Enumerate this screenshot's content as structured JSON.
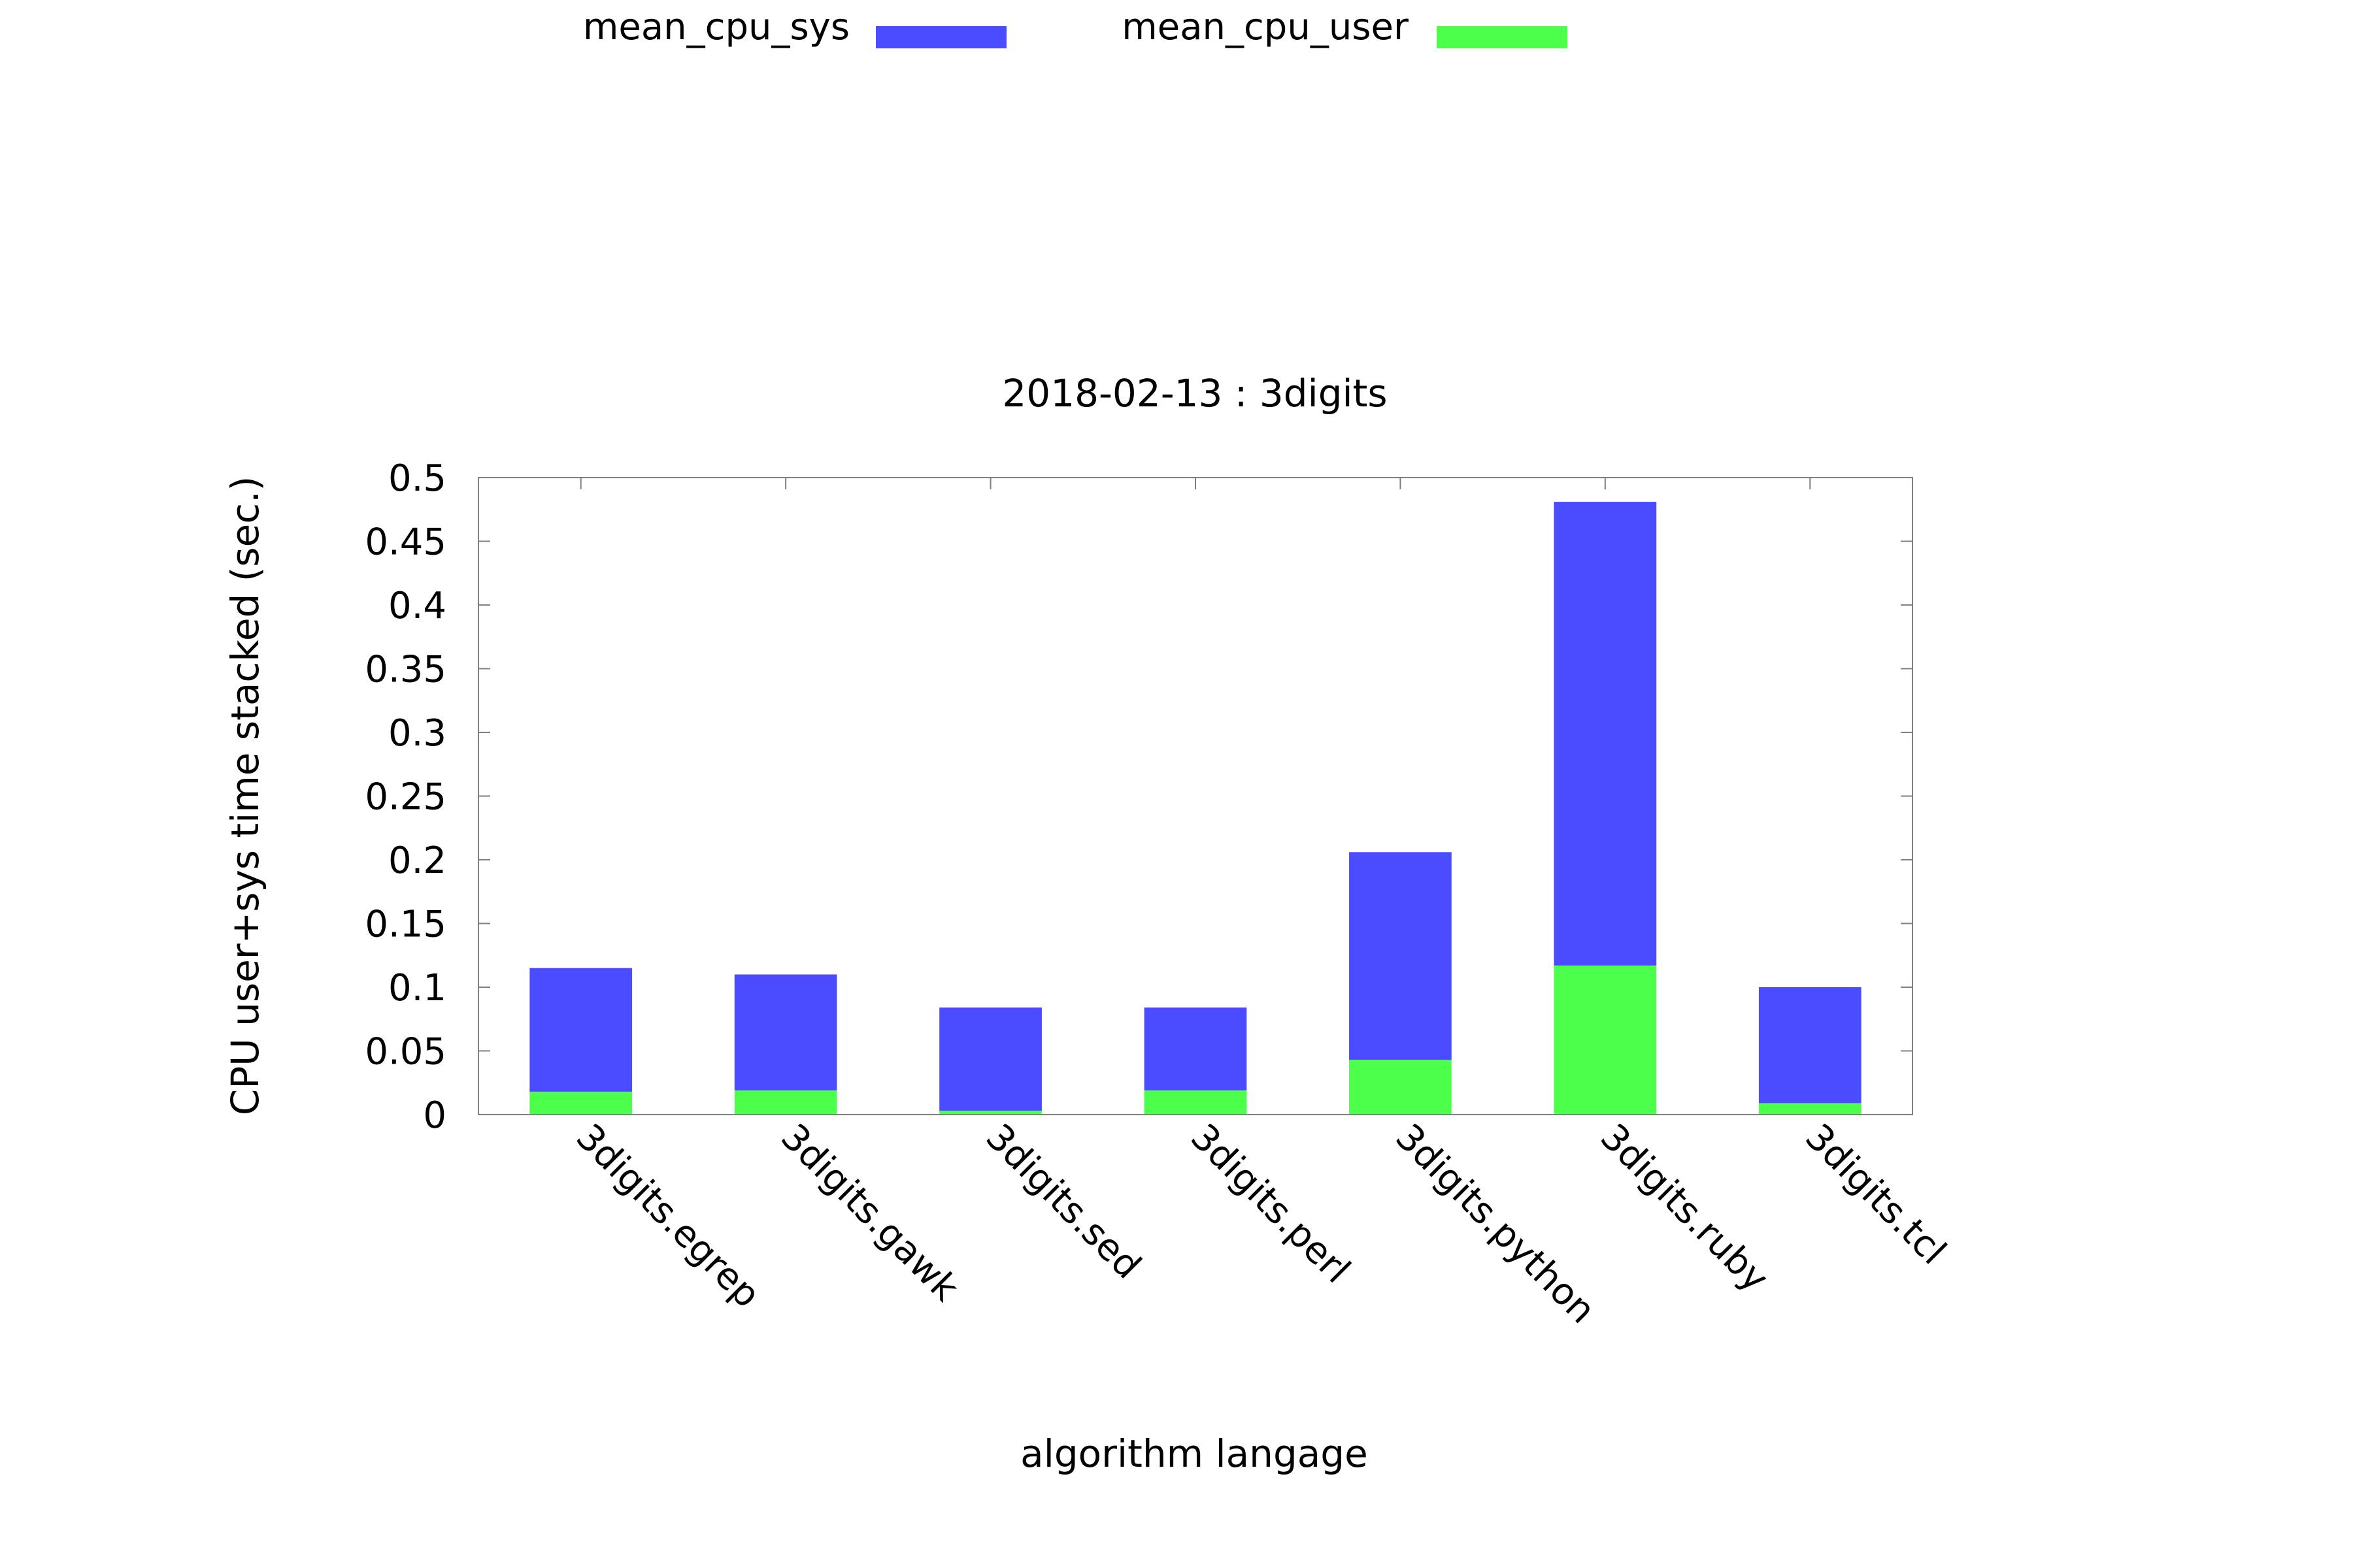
{
  "chart_data": {
    "type": "bar",
    "stacked": true,
    "title": "2018-02-13 : 3digits",
    "xlabel": "algorithm langage",
    "ylabel": "CPU user+sys time stacked (sec.)",
    "ylim": [
      0,
      0.5
    ],
    "yticks": [
      "0",
      "0.05",
      "0.1",
      "0.15",
      "0.2",
      "0.25",
      "0.3",
      "0.35",
      "0.4",
      "0.45",
      "0.5"
    ],
    "categories": [
      "3digits.egrep",
      "3digits.gawk",
      "3digits.sed",
      "3digits.perl",
      "3digits.python",
      "3digits.ruby",
      "3digits.tcl"
    ],
    "series": [
      {
        "name": "mean_cpu_user",
        "color": "#4bff4b",
        "values": [
          0.018,
          0.019,
          0.003,
          0.019,
          0.043,
          0.117,
          0.009
        ]
      },
      {
        "name": "mean_cpu_sys",
        "color": "#4b4bff",
        "values": [
          0.097,
          0.091,
          0.081,
          0.065,
          0.163,
          0.364,
          0.091
        ]
      }
    ],
    "legend": {
      "position": "top",
      "entries": [
        {
          "name": "mean_cpu_sys",
          "color": "#4b4bff"
        },
        {
          "name": "mean_cpu_user",
          "color": "#4bff4b"
        }
      ]
    },
    "grid": false,
    "axis_color": "#808080"
  }
}
